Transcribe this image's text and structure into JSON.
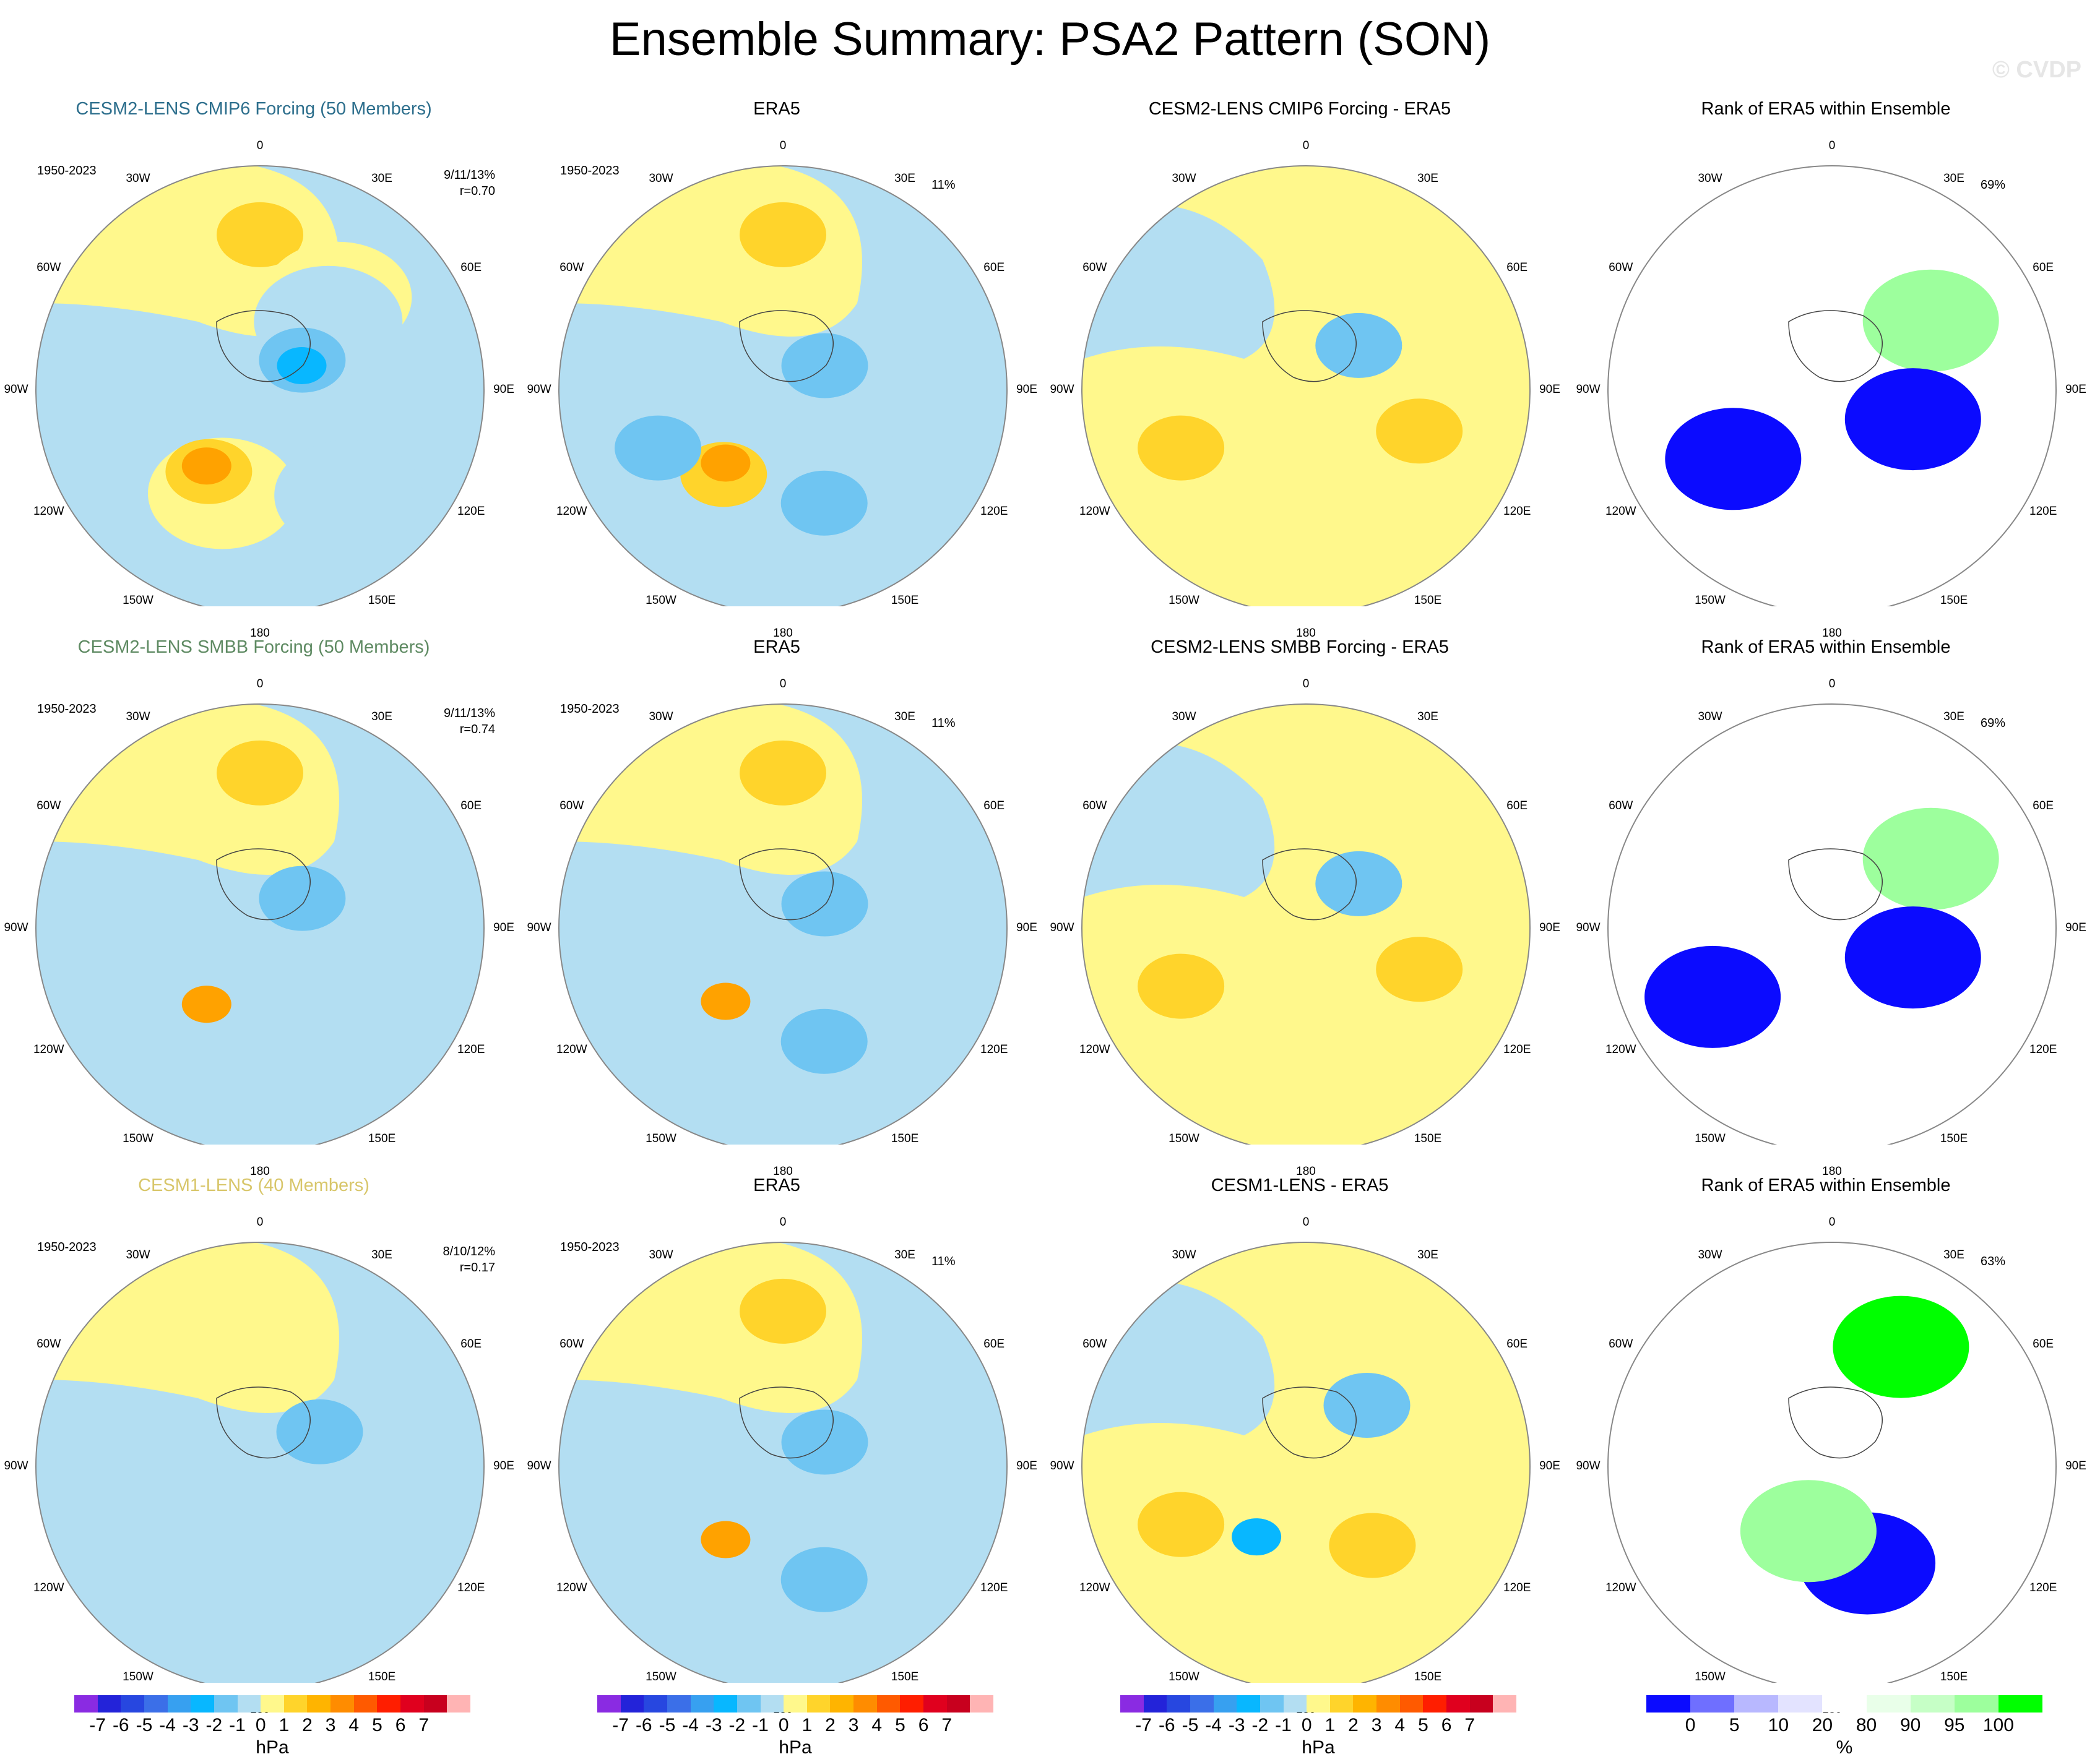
{
  "title": "Ensemble Summary: PSA2 Pattern (SON)",
  "watermark": "© CVDP",
  "period": "1950-2023",
  "longitude_labels": [
    "0",
    "30E",
    "60E",
    "90E",
    "120E",
    "150E",
    "180",
    "150W",
    "120W",
    "90W",
    "60W",
    "30W"
  ],
  "colors": {
    "neg1": "#b3def2",
    "neg2": "#6fc5f2",
    "neg3": "#08b7ff",
    "pos1": "#fff88c",
    "pos2": "#ffd42b",
    "pos3": "#ffa200",
    "rank_blue3": "#0b0bff",
    "rank_blue2": "#6f6fff",
    "rank_blue1": "#b8b8ff",
    "rank_blue0": "#e3e3ff",
    "rank_green0": "#e9ffe9",
    "rank_green1": "#9dff9d",
    "rank_green2": "#00ff00"
  },
  "rows": [
    {
      "model_title": "CESM2-LENS CMIP6 Forcing (50 Members)",
      "model_color": "#2c6e8c",
      "model_stats": "9/11/13%",
      "model_r": "r=0.70",
      "obs_title": "ERA5",
      "obs_pct": "11%",
      "diff_title": "CESM2-LENS CMIP6 Forcing - ERA5",
      "rank_title": "Rank of ERA5 within Ensemble",
      "rank_pct": "69%"
    },
    {
      "model_title": "CESM2-LENS SMBB Forcing (50 Members)",
      "model_color": "#5e8a62",
      "model_stats": "9/11/13%",
      "model_r": "r=0.74",
      "obs_title": "ERA5",
      "obs_pct": "11%",
      "diff_title": "CESM2-LENS SMBB Forcing - ERA5",
      "rank_title": "Rank of ERA5 within Ensemble",
      "rank_pct": "69%"
    },
    {
      "model_title": "CESM1-LENS (40 Members)",
      "model_color": "#d8c66a",
      "model_stats": "8/10/12%",
      "model_r": "r=0.17",
      "obs_title": "ERA5",
      "obs_pct": "11%",
      "diff_title": "CESM1-LENS - ERA5",
      "rank_title": "Rank of ERA5 within Ensemble",
      "rank_pct": "63%"
    }
  ],
  "chart_data": {
    "type": "heatmap",
    "projection": "south polar stereographic",
    "units": "hPa",
    "contour_levels": [
      -7,
      -6,
      -5,
      -4,
      -3,
      -2,
      -1,
      0,
      1,
      2,
      3,
      4,
      5,
      6,
      7
    ],
    "contour_colors": [
      "#8a2be2",
      "#2323d9",
      "#2747e0",
      "#3b6fe8",
      "#37a0f0",
      "#08b7ff",
      "#6fc5f2",
      "#b3def2",
      "#fff88c",
      "#ffd42b",
      "#ffb400",
      "#ff8c00",
      "#ff5a00",
      "#ff1e00",
      "#e0001e",
      "#c8001e",
      "#ffb4b4"
    ],
    "colorbar_ticks": [
      "-7",
      "-6",
      "-5",
      "-4",
      "-3",
      "-2",
      "-1",
      "0",
      "1",
      "2",
      "3",
      "4",
      "5",
      "6",
      "7"
    ],
    "colorbar_unit": "hPa",
    "rank_levels": [
      "0",
      "5",
      "10",
      "20",
      "80",
      "90",
      "95",
      "100"
    ],
    "rank_colors": [
      "#0b0bff",
      "#6f6fff",
      "#b8b8ff",
      "#e3e3ff",
      "#ffffff",
      "#e9ffe9",
      "#c6ffc6",
      "#9dff9d",
      "#00ff00"
    ],
    "rank_unit": "%",
    "panels": [
      {
        "row": 1,
        "col": 1,
        "field": "model",
        "features": [
          {
            "lon": 0,
            "lat": -45,
            "level": 2
          },
          {
            "lon": 40,
            "lat": -55,
            "level": 1
          },
          {
            "lon": 45,
            "lat": -62,
            "level": -1
          },
          {
            "lon": 55,
            "lat": -75,
            "level": -2
          },
          {
            "lon": 60,
            "lat": -76,
            "level": -3
          },
          {
            "lon": 200,
            "lat": -58,
            "level": 1
          },
          {
            "lon": 212,
            "lat": -62,
            "level": 2
          },
          {
            "lon": 215,
            "lat": -63,
            "level": 3
          },
          {
            "lon": 140,
            "lat": -50,
            "level": -1
          }
        ]
      },
      {
        "row": 1,
        "col": 2,
        "field": "obs",
        "features": [
          {
            "lon": 0,
            "lat": -45,
            "level": 2
          },
          {
            "lon": 90,
            "lat": -70,
            "level": -1
          },
          {
            "lon": 60,
            "lat": -76,
            "level": -2
          },
          {
            "lon": 215,
            "lat": -60,
            "level": 2
          },
          {
            "lon": 218,
            "lat": -63,
            "level": 3
          },
          {
            "lon": 160,
            "lat": -55,
            "level": -2
          },
          {
            "lon": 245,
            "lat": -50,
            "level": -2
          }
        ]
      },
      {
        "row": 1,
        "col": 3,
        "field": "diff",
        "features": [
          {
            "lon": 50,
            "lat": -70,
            "level": -2
          },
          {
            "lon": 245,
            "lat": -50,
            "level": 2
          },
          {
            "lon": 110,
            "lat": -55,
            "level": 2
          }
        ]
      },
      {
        "row": 1,
        "col": 4,
        "field": "rank",
        "features": [
          {
            "lon": 55,
            "lat": -55,
            "level": 90
          },
          {
            "lon": 235,
            "lat": -55,
            "level": 0
          },
          {
            "lon": 110,
            "lat": -65,
            "level": 0
          }
        ]
      },
      {
        "row": 2,
        "col": 1,
        "field": "model",
        "features": [
          {
            "lon": 0,
            "lat": -45,
            "level": 2
          },
          {
            "lon": 55,
            "lat": -75,
            "level": -2
          },
          {
            "lon": 215,
            "lat": -63,
            "level": 3
          }
        ]
      },
      {
        "row": 2,
        "col": 2,
        "field": "obs",
        "features": [
          {
            "lon": 0,
            "lat": -45,
            "level": 2
          },
          {
            "lon": 60,
            "lat": -76,
            "level": -2
          },
          {
            "lon": 218,
            "lat": -63,
            "level": 3
          },
          {
            "lon": 160,
            "lat": -55,
            "level": -2
          }
        ]
      },
      {
        "row": 2,
        "col": 3,
        "field": "diff",
        "features": [
          {
            "lon": 50,
            "lat": -70,
            "level": -2
          },
          {
            "lon": 245,
            "lat": -50,
            "level": 2
          },
          {
            "lon": 110,
            "lat": -55,
            "level": 2
          }
        ]
      },
      {
        "row": 2,
        "col": 4,
        "field": "rank",
        "features": [
          {
            "lon": 55,
            "lat": -55,
            "level": 90
          },
          {
            "lon": 240,
            "lat": -50,
            "level": 0
          },
          {
            "lon": 110,
            "lat": -65,
            "level": 0
          }
        ]
      },
      {
        "row": 3,
        "col": 1,
        "field": "model",
        "features": [
          {
            "lon": 60,
            "lat": -70,
            "level": -2
          }
        ]
      },
      {
        "row": 3,
        "col": 2,
        "field": "obs",
        "features": [
          {
            "lon": 0,
            "lat": -45,
            "level": 2
          },
          {
            "lon": 60,
            "lat": -76,
            "level": -2
          },
          {
            "lon": 218,
            "lat": -63,
            "level": 3
          },
          {
            "lon": 160,
            "lat": -55,
            "level": -2
          }
        ]
      },
      {
        "row": 3,
        "col": 3,
        "field": "diff",
        "features": [
          {
            "lon": 45,
            "lat": -65,
            "level": -2
          },
          {
            "lon": 215,
            "lat": -65,
            "level": -3
          },
          {
            "lon": 245,
            "lat": -50,
            "level": 2
          },
          {
            "lon": 140,
            "lat": -60,
            "level": 2
          }
        ]
      },
      {
        "row": 3,
        "col": 4,
        "field": "rank",
        "features": [
          {
            "lon": 30,
            "lat": -50,
            "level": 100
          },
          {
            "lon": 160,
            "lat": -60,
            "level": 0
          },
          {
            "lon": 200,
            "lat": -70,
            "level": 90
          }
        ]
      }
    ]
  }
}
